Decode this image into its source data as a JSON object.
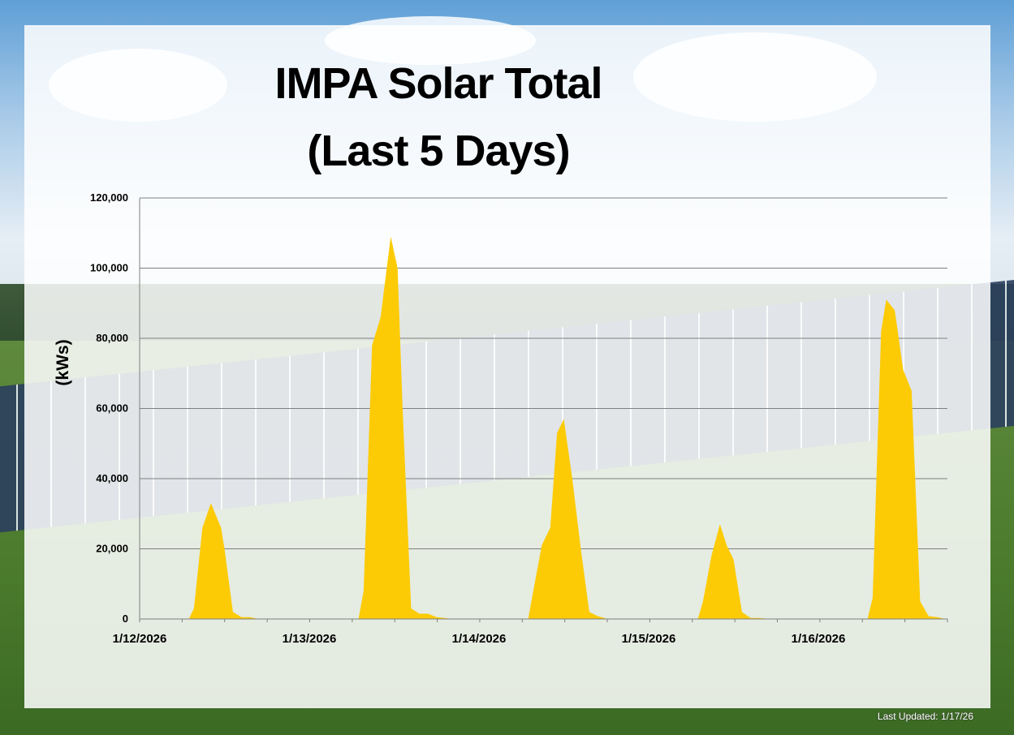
{
  "chart_data": {
    "type": "area",
    "title_line1": "IMPA Solar Total",
    "title_line2": "(Last 5 Days)",
    "ylabel": "(kWs)",
    "xlabel": "",
    "ylim": [
      0,
      120000
    ],
    "yticks": [
      "0",
      "20,000",
      "40,000",
      "60,000",
      "80,000",
      "100,000",
      "120,000"
    ],
    "ytick_values": [
      0,
      20000,
      40000,
      60000,
      80000,
      100000,
      120000
    ],
    "xlim": [
      0,
      4.8
    ],
    "xticks": [
      "1/12/2026",
      "1/13/2026",
      "1/14/2026",
      "1/15/2026",
      "1/16/2026"
    ],
    "xtick_values": [
      0,
      1,
      2,
      3,
      4
    ],
    "grid": true,
    "series_color": "#fccb05",
    "series": [
      {
        "x": [
          0,
          0.29,
          0.32,
          0.37,
          0.42,
          0.48,
          0.5,
          0.55,
          0.6,
          0.65,
          0.7,
          0.75,
          0.8,
          0.86,
          1.29,
          1.32,
          1.37,
          1.42,
          1.48,
          1.52,
          1.55,
          1.6,
          1.65,
          1.7,
          1.75,
          1.85,
          2.29,
          2.32,
          2.37,
          2.42,
          2.46,
          2.5,
          2.55,
          2.6,
          2.65,
          2.7,
          2.76,
          3.29,
          3.32,
          3.37,
          3.42,
          3.46,
          3.5,
          3.55,
          3.6,
          3.65,
          3.72,
          4.29,
          4.32,
          4.37,
          4.4,
          4.45,
          4.5,
          4.55,
          4.6,
          4.65,
          4.7,
          4.75
        ],
        "y": [
          0,
          0,
          3000,
          26000,
          33000,
          26000,
          20000,
          2000,
          500,
          500,
          0,
          0,
          0,
          0,
          0,
          8000,
          78000,
          86000,
          109000,
          100000,
          60000,
          3000,
          1500,
          1500,
          500,
          0,
          0,
          8000,
          21000,
          26000,
          53000,
          57000,
          40000,
          20000,
          2000,
          800,
          0,
          0,
          5000,
          18000,
          27000,
          21000,
          17000,
          2000,
          300,
          300,
          0,
          0,
          6000,
          82000,
          91000,
          88000,
          71000,
          65000,
          5000,
          800,
          500,
          0
        ]
      }
    ],
    "footer": "Last Updated: 1/17/26"
  }
}
